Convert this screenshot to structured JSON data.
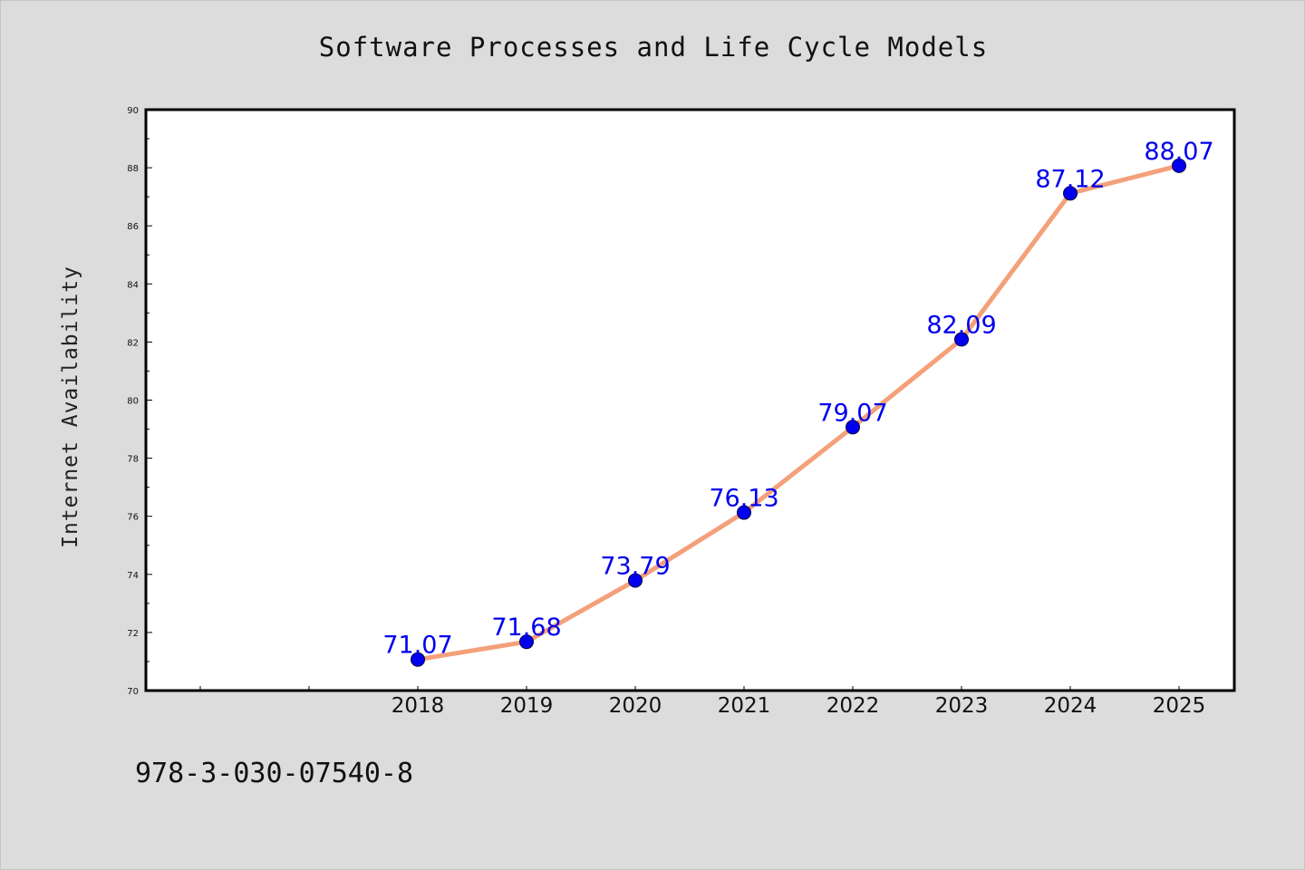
{
  "chart_data": {
    "type": "line",
    "title": "Software Processes and Life Cycle Models",
    "xlabel": "",
    "ylabel": "Internet Availability",
    "x": [
      "2018",
      "2019",
      "2020",
      "2021",
      "2022",
      "2023",
      "2024",
      "2025"
    ],
    "series": [
      {
        "values": [
          71.07,
          71.68,
          73.79,
          76.13,
          79.07,
          82.09,
          87.12,
          88.07
        ],
        "data_labels": [
          "71.07",
          "71.68",
          "73.79",
          "76.13",
          "79.07",
          "82.09",
          "87.12",
          "88.07"
        ]
      }
    ],
    "ylim": [
      70,
      90
    ],
    "y_ticks": [
      "70",
      "72",
      "74",
      "76",
      "78",
      "80",
      "82",
      "84",
      "86",
      "88",
      "90"
    ],
    "grid": false,
    "legend": "none",
    "colors": {
      "line": "#f4a07a",
      "marker": "#0000ee",
      "data_label": "#0000ee",
      "axes": "#000000",
      "plot_background": "#ffffff",
      "page_background": "#dcdcdc"
    }
  },
  "footer": {
    "code": "978-3-030-07540-8"
  }
}
